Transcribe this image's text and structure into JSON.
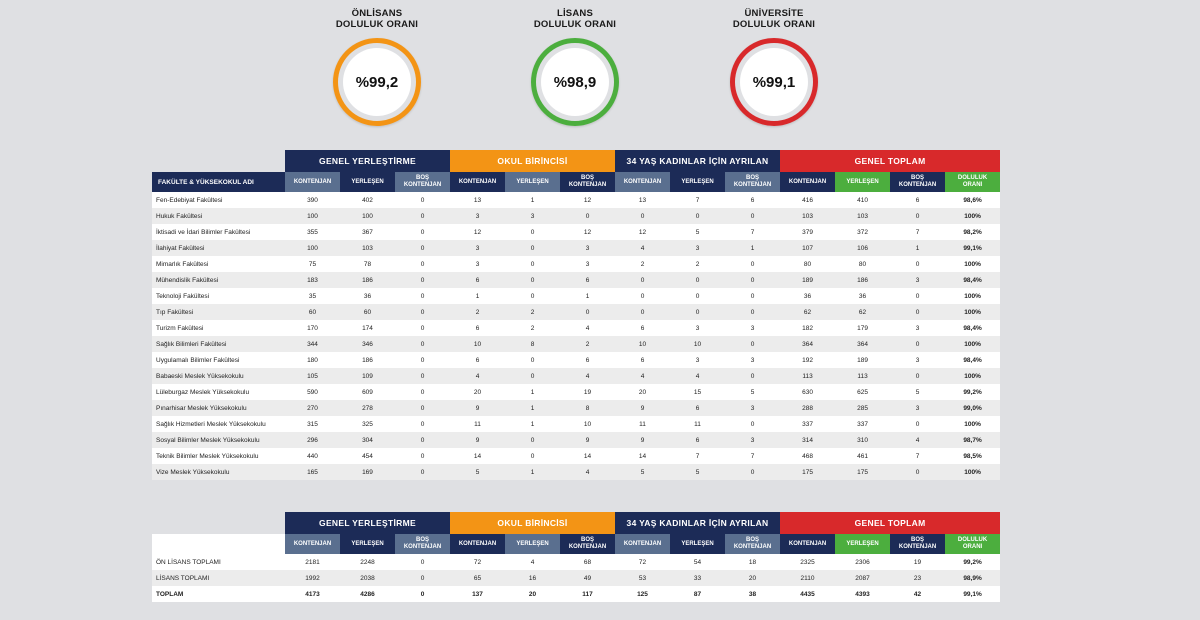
{
  "gauges": [
    {
      "title1": "ÖNLİSANS",
      "title2": "DOLULUK ORANI",
      "value": "%99,2",
      "color": "#f39415"
    },
    {
      "title1": "LİSANS",
      "title2": "DOLULUK ORANI",
      "value": "%98,9",
      "color": "#4cae3e"
    },
    {
      "title1": "ÜNİVERSİTE",
      "title2": "DOLULUK ORANI",
      "value": "%99,1",
      "color": "#d8292b"
    }
  ],
  "groups": {
    "g1": "GENEL YERLEŞTİRME",
    "g2": "OKUL BİRİNCİSİ",
    "g3": "34 YAŞ KADINLAR İÇİN AYRILAN",
    "g4": "GENEL TOPLAM"
  },
  "subheaders": {
    "name": "FAKÜLTE & YÜKSEKOKUL ADI",
    "kontenjan": "KONTENJAN",
    "yerlesen": "YERLEŞEN",
    "bos1": "BOŞ",
    "bos2": "KONTENJAN",
    "doluluk1": "DOLULUK",
    "doluluk2": "ORANI"
  },
  "rows": [
    [
      "Fen-Edebiyat Fakültesi",
      "390",
      "402",
      "0",
      "13",
      "1",
      "12",
      "13",
      "7",
      "6",
      "416",
      "410",
      "6",
      "98,6%"
    ],
    [
      "Hukuk Fakültesi",
      "100",
      "100",
      "0",
      "3",
      "3",
      "0",
      "0",
      "0",
      "0",
      "103",
      "103",
      "0",
      "100%"
    ],
    [
      "İktisadi ve İdari Bilimler Fakültesi",
      "355",
      "367",
      "0",
      "12",
      "0",
      "12",
      "12",
      "5",
      "7",
      "379",
      "372",
      "7",
      "98,2%"
    ],
    [
      "İlahiyat Fakültesi",
      "100",
      "103",
      "0",
      "3",
      "0",
      "3",
      "4",
      "3",
      "1",
      "107",
      "106",
      "1",
      "99,1%"
    ],
    [
      "Mimarlık Fakültesi",
      "75",
      "78",
      "0",
      "3",
      "0",
      "3",
      "2",
      "2",
      "0",
      "80",
      "80",
      "0",
      "100%"
    ],
    [
      "Mühendislik Fakültesi",
      "183",
      "186",
      "0",
      "6",
      "0",
      "6",
      "0",
      "0",
      "0",
      "189",
      "186",
      "3",
      "98,4%"
    ],
    [
      "Teknoloji Fakültesi",
      "35",
      "36",
      "0",
      "1",
      "0",
      "1",
      "0",
      "0",
      "0",
      "36",
      "36",
      "0",
      "100%"
    ],
    [
      "Tıp Fakültesi",
      "60",
      "60",
      "0",
      "2",
      "2",
      "0",
      "0",
      "0",
      "0",
      "62",
      "62",
      "0",
      "100%"
    ],
    [
      "Turizm Fakültesi",
      "170",
      "174",
      "0",
      "6",
      "2",
      "4",
      "6",
      "3",
      "3",
      "182",
      "179",
      "3",
      "98,4%"
    ],
    [
      "Sağlık Bilimleri Fakültesi",
      "344",
      "346",
      "0",
      "10",
      "8",
      "2",
      "10",
      "10",
      "0",
      "364",
      "364",
      "0",
      "100%"
    ],
    [
      "Uygulamalı Bilimler Fakültesi",
      "180",
      "186",
      "0",
      "6",
      "0",
      "6",
      "6",
      "3",
      "3",
      "192",
      "189",
      "3",
      "98,4%"
    ],
    [
      "Babaeski Meslek Yüksekokulu",
      "105",
      "109",
      "0",
      "4",
      "0",
      "4",
      "4",
      "4",
      "0",
      "113",
      "113",
      "0",
      "100%"
    ],
    [
      "Lüleburgaz Meslek Yüksekokulu",
      "590",
      "609",
      "0",
      "20",
      "1",
      "19",
      "20",
      "15",
      "5",
      "630",
      "625",
      "5",
      "99,2%"
    ],
    [
      "Pınarhisar Meslek Yüksekokulu",
      "270",
      "278",
      "0",
      "9",
      "1",
      "8",
      "9",
      "6",
      "3",
      "288",
      "285",
      "3",
      "99,0%"
    ],
    [
      "Sağlık Hizmetleri Meslek Yüksekokulu",
      "315",
      "325",
      "0",
      "11",
      "1",
      "10",
      "11",
      "11",
      "0",
      "337",
      "337",
      "0",
      "100%"
    ],
    [
      "Sosyal Bilimler Meslek Yüksekokulu",
      "296",
      "304",
      "0",
      "9",
      "0",
      "9",
      "9",
      "6",
      "3",
      "314",
      "310",
      "4",
      "98,7%"
    ],
    [
      "Teknik Bilimler Meslek Yüksekokulu",
      "440",
      "454",
      "0",
      "14",
      "0",
      "14",
      "14",
      "7",
      "7",
      "468",
      "461",
      "7",
      "98,5%"
    ],
    [
      "Vize Meslek Yüksekokulu",
      "165",
      "169",
      "0",
      "5",
      "1",
      "4",
      "5",
      "5",
      "0",
      "175",
      "175",
      "0",
      "100%"
    ]
  ],
  "totals": [
    [
      "ÖN LİSANS TOPLAMI",
      "2181",
      "2248",
      "0",
      "72",
      "4",
      "68",
      "72",
      "54",
      "18",
      "2325",
      "2306",
      "19",
      "99,2%"
    ],
    [
      "LİSANS TOPLAMI",
      "1992",
      "2038",
      "0",
      "65",
      "16",
      "49",
      "53",
      "33",
      "20",
      "2110",
      "2087",
      "23",
      "98,9%"
    ],
    [
      "TOPLAM",
      "4173",
      "4286",
      "0",
      "137",
      "20",
      "117",
      "125",
      "87",
      "38",
      "4435",
      "4393",
      "42",
      "99,1%"
    ]
  ]
}
